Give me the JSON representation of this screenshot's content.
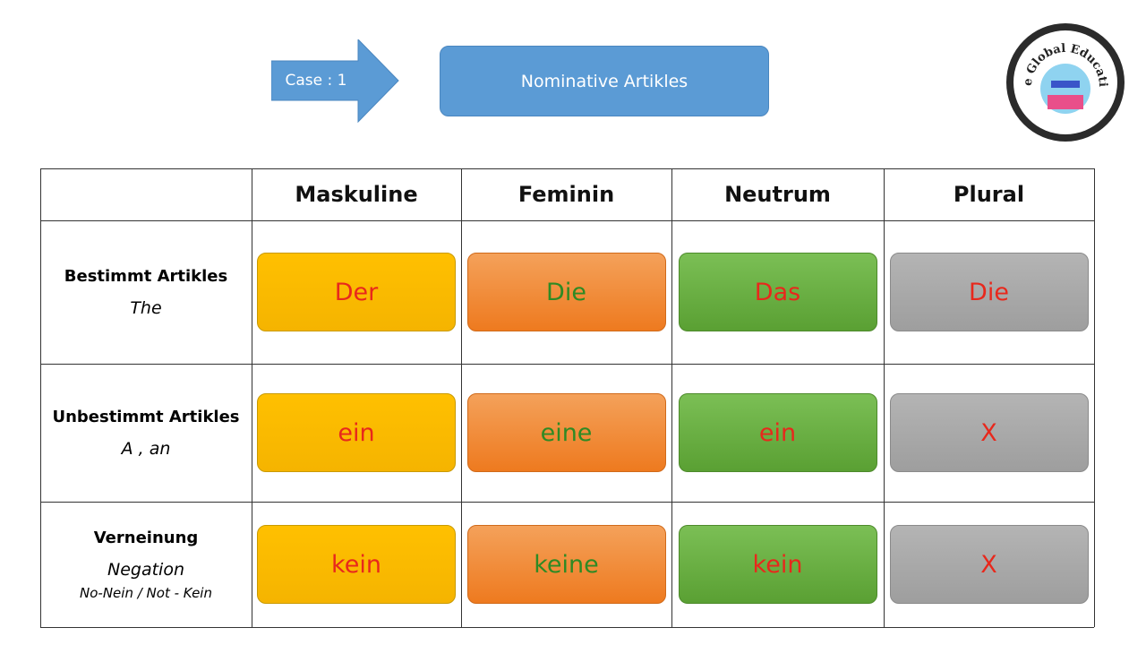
{
  "header": {
    "case_label": "Case : 1",
    "title": "Nominative Artikles"
  },
  "logo": {
    "text": "The Global Education"
  },
  "table": {
    "columns": [
      "Maskuline",
      "Feminin",
      "Neutrum",
      "Plural"
    ],
    "rows": [
      {
        "label": "Bestimmt Artikles",
        "translation": "The",
        "cells": [
          "Der",
          "Die",
          "Das",
          "Die"
        ]
      },
      {
        "label": "Unbestimmt Artikles",
        "translation": "A , an",
        "cells": [
          "ein",
          "eine",
          "ein",
          "X"
        ]
      },
      {
        "label": "Verneinung",
        "translation": "Negation",
        "note": "No-Nein / Not - Kein",
        "cells": [
          "kein",
          "keine",
          "kein",
          "X"
        ]
      }
    ]
  }
}
